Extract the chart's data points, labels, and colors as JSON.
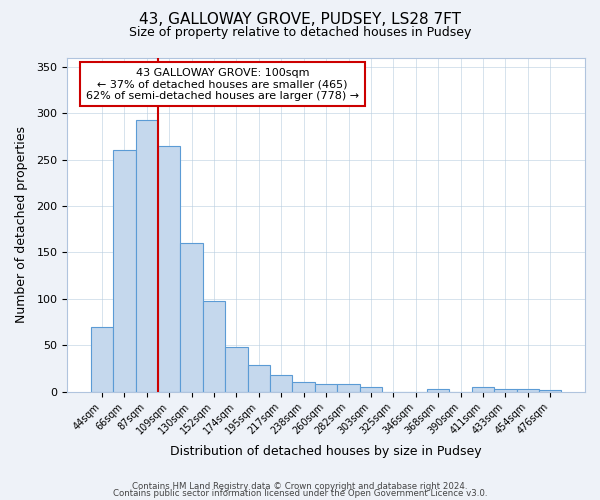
{
  "title": "43, GALLOWAY GROVE, PUDSEY, LS28 7FT",
  "subtitle": "Size of property relative to detached houses in Pudsey",
  "xlabel": "Distribution of detached houses by size in Pudsey",
  "ylabel": "Number of detached properties",
  "bar_labels": [
    "44sqm",
    "66sqm",
    "87sqm",
    "109sqm",
    "130sqm",
    "152sqm",
    "174sqm",
    "195sqm",
    "217sqm",
    "238sqm",
    "260sqm",
    "282sqm",
    "303sqm",
    "325sqm",
    "346sqm",
    "368sqm",
    "390sqm",
    "411sqm",
    "433sqm",
    "454sqm",
    "476sqm"
  ],
  "bar_values": [
    70,
    260,
    293,
    265,
    160,
    98,
    48,
    29,
    18,
    10,
    8,
    8,
    5,
    0,
    0,
    3,
    0,
    5,
    3,
    3,
    2
  ],
  "bar_color": "#c5d8ed",
  "bar_edge_color": "#5b9bd5",
  "ylim": [
    0,
    360
  ],
  "yticks": [
    0,
    50,
    100,
    150,
    200,
    250,
    300,
    350
  ],
  "red_line_x": 2.5,
  "marker_color": "#cc0000",
  "annotation_title": "43 GALLOWAY GROVE: 100sqm",
  "annotation_line1": "← 37% of detached houses are smaller (465)",
  "annotation_line2": "62% of semi-detached houses are larger (778) →",
  "annotation_box_color": "#cc0000",
  "footer_line1": "Contains HM Land Registry data © Crown copyright and database right 2024.",
  "footer_line2": "Contains public sector information licensed under the Open Government Licence v3.0.",
  "background_color": "#eef2f8",
  "plot_background": "#ffffff"
}
